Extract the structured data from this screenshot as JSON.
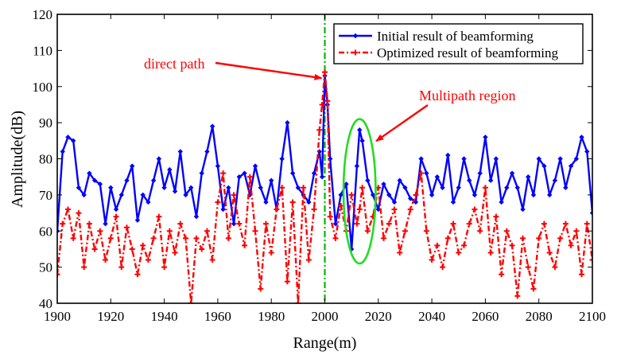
{
  "chart_data": {
    "type": "line",
    "title": "",
    "xlabel": "Range(m)",
    "ylabel": "Amplitude(dB)",
    "xlim": [
      1900,
      2100
    ],
    "ylim": [
      40,
      120
    ],
    "xticks": [
      1900,
      1920,
      1940,
      1960,
      1980,
      2000,
      2020,
      2040,
      2060,
      2080,
      2100
    ],
    "yticks": [
      40,
      50,
      60,
      70,
      80,
      90,
      100,
      110,
      120
    ],
    "grid": false,
    "legend_position": "top-right",
    "colors": {
      "initial": "#0000ff",
      "optimized": "#ff0000",
      "marker_line": "#00bb00",
      "ellipse": "#22dd22",
      "annotation": "#ff0000"
    },
    "series": [
      {
        "name": "Initial result of beamforming",
        "style": "solid-diamond",
        "x": [
          1900,
          1902,
          1904,
          1906,
          1908,
          1910,
          1912,
          1914,
          1916,
          1918,
          1920,
          1922,
          1924,
          1926,
          1928,
          1930,
          1932,
          1934,
          1936,
          1938,
          1940,
          1942,
          1944,
          1946,
          1948,
          1950,
          1952,
          1954,
          1956,
          1958,
          1960,
          1962,
          1964,
          1966,
          1968,
          1970,
          1972,
          1974,
          1976,
          1978,
          1980,
          1982,
          1984,
          1986,
          1988,
          1990,
          1992,
          1994,
          1996,
          1998,
          1999,
          2000,
          2001,
          2002,
          2004,
          2006,
          2008,
          2010,
          2012,
          2013,
          2014,
          2016,
          2018,
          2020,
          2022,
          2024,
          2026,
          2028,
          2030,
          2032,
          2034,
          2036,
          2038,
          2040,
          2042,
          2044,
          2046,
          2048,
          2050,
          2052,
          2054,
          2056,
          2058,
          2060,
          2062,
          2064,
          2066,
          2068,
          2070,
          2072,
          2074,
          2076,
          2078,
          2080,
          2082,
          2084,
          2086,
          2088,
          2090,
          2092,
          2094,
          2096,
          2098,
          2100
        ],
        "values": [
          60,
          82,
          86,
          85,
          72,
          70,
          76,
          74,
          73,
          62,
          72,
          66,
          70,
          74,
          78,
          63,
          70,
          68,
          74,
          80,
          72,
          77,
          71,
          82,
          70,
          72,
          64,
          76,
          82,
          89,
          78,
          66,
          72,
          62,
          75,
          76,
          70,
          78,
          72,
          68,
          74,
          66,
          80,
          90,
          76,
          72,
          70,
          68,
          76,
          82,
          75,
          103,
          95,
          80,
          62,
          70,
          73,
          55,
          78,
          88,
          85,
          74,
          70,
          66,
          73,
          70,
          68,
          74,
          72,
          69,
          68,
          80,
          76,
          70,
          75,
          72,
          81,
          68,
          72,
          80,
          74,
          70,
          76,
          86,
          74,
          80,
          68,
          72,
          76,
          72,
          66,
          75,
          70,
          80,
          78,
          70,
          74,
          80,
          72,
          78,
          80,
          86,
          82,
          65
        ]
      },
      {
        "name": "Optimized result of beamforming",
        "style": "dashdot-plus",
        "x": [
          1900,
          1902,
          1904,
          1906,
          1908,
          1910,
          1912,
          1914,
          1916,
          1918,
          1920,
          1922,
          1924,
          1926,
          1928,
          1930,
          1932,
          1934,
          1936,
          1938,
          1940,
          1942,
          1944,
          1946,
          1948,
          1950,
          1952,
          1954,
          1956,
          1958,
          1960,
          1962,
          1964,
          1966,
          1968,
          1970,
          1972,
          1974,
          1976,
          1978,
          1980,
          1982,
          1984,
          1986,
          1988,
          1990,
          1992,
          1994,
          1996,
          1998,
          1999,
          2000,
          2001,
          2002,
          2004,
          2006,
          2008,
          2010,
          2012,
          2013,
          2014,
          2016,
          2018,
          2020,
          2022,
          2024,
          2026,
          2028,
          2030,
          2032,
          2034,
          2036,
          2038,
          2040,
          2042,
          2044,
          2046,
          2048,
          2050,
          2052,
          2054,
          2056,
          2058,
          2060,
          2062,
          2064,
          2066,
          2068,
          2070,
          2072,
          2074,
          2076,
          2078,
          2080,
          2082,
          2084,
          2086,
          2088,
          2090,
          2092,
          2094,
          2096,
          2098,
          2100
        ],
        "values": [
          48,
          62,
          66,
          58,
          65,
          50,
          62,
          55,
          60,
          52,
          58,
          64,
          50,
          61,
          55,
          48,
          56,
          52,
          58,
          64,
          50,
          60,
          54,
          62,
          58,
          40,
          58,
          55,
          60,
          52,
          68,
          76,
          58,
          70,
          62,
          56,
          75,
          60,
          44,
          62,
          54,
          66,
          72,
          46,
          68,
          40,
          72,
          52,
          66,
          88,
          95,
          104,
          96,
          64,
          58,
          67,
          60,
          70,
          62,
          66,
          72,
          60,
          64,
          72,
          58,
          62,
          66,
          54,
          60,
          66,
          70,
          76,
          60,
          52,
          56,
          50,
          58,
          62,
          54,
          56,
          62,
          66,
          60,
          72,
          54,
          64,
          48,
          60,
          56,
          42,
          58,
          50,
          44,
          58,
          62,
          54,
          50,
          58,
          62,
          56,
          60,
          48,
          62,
          52
        ]
      }
    ],
    "annotations": [
      {
        "text": "direct path",
        "target_x": 2000,
        "target_y": 103
      },
      {
        "text": "Multipath region",
        "target_x": 2018,
        "target_y": 88
      }
    ],
    "reference_line_x": 2000,
    "highlight_region": {
      "x_center": 2013,
      "y_center": 71,
      "x_halfwidth": 6,
      "y_halfwidth": 20
    }
  }
}
